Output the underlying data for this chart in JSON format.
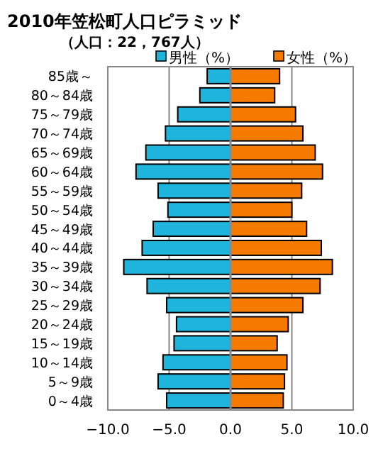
{
  "chart_data": {
    "type": "bar",
    "orientation": "horizontal",
    "title": "2010年笠松町人口ピラミッド",
    "subtitle": "（人口：22，767人）",
    "categories": [
      "85歳～",
      "80～84歳",
      "75～79歳",
      "70～74歳",
      "65～69歳",
      "60～64歳",
      "55～59歳",
      "50～54歳",
      "45～49歳",
      "40～44歳",
      "35～39歳",
      "30～34歳",
      "25～29歳",
      "20～24歳",
      "15～19歳",
      "10～14歳",
      "5～9歳",
      "0～4歳"
    ],
    "series": [
      {
        "name": "男性（%）",
        "color": "#1fb4dc",
        "values": [
          -1.9,
          -2.5,
          -4.3,
          -5.3,
          -6.9,
          -7.7,
          -5.9,
          -5.1,
          -6.3,
          -7.2,
          -8.7,
          -6.8,
          -5.2,
          -4.4,
          -4.6,
          -5.5,
          -5.9,
          -5.2
        ]
      },
      {
        "name": "女性（%）",
        "color": "#f47a00",
        "values": [
          4.0,
          3.6,
          5.3,
          5.9,
          6.9,
          7.5,
          5.8,
          5.0,
          6.2,
          7.4,
          8.3,
          7.3,
          5.9,
          4.7,
          3.8,
          4.6,
          4.4,
          4.3
        ]
      }
    ],
    "xlim": [
      -10,
      10
    ],
    "xticks": [
      {
        "value": -10,
        "label": "−10.0"
      },
      {
        "value": -5,
        "label": "−5.0"
      },
      {
        "value": 0,
        "label": "0.0"
      },
      {
        "value": 5,
        "label": "5.0"
      },
      {
        "value": 10,
        "label": "10.0"
      }
    ],
    "grid": "x",
    "stacked": true,
    "legend": "top right"
  }
}
